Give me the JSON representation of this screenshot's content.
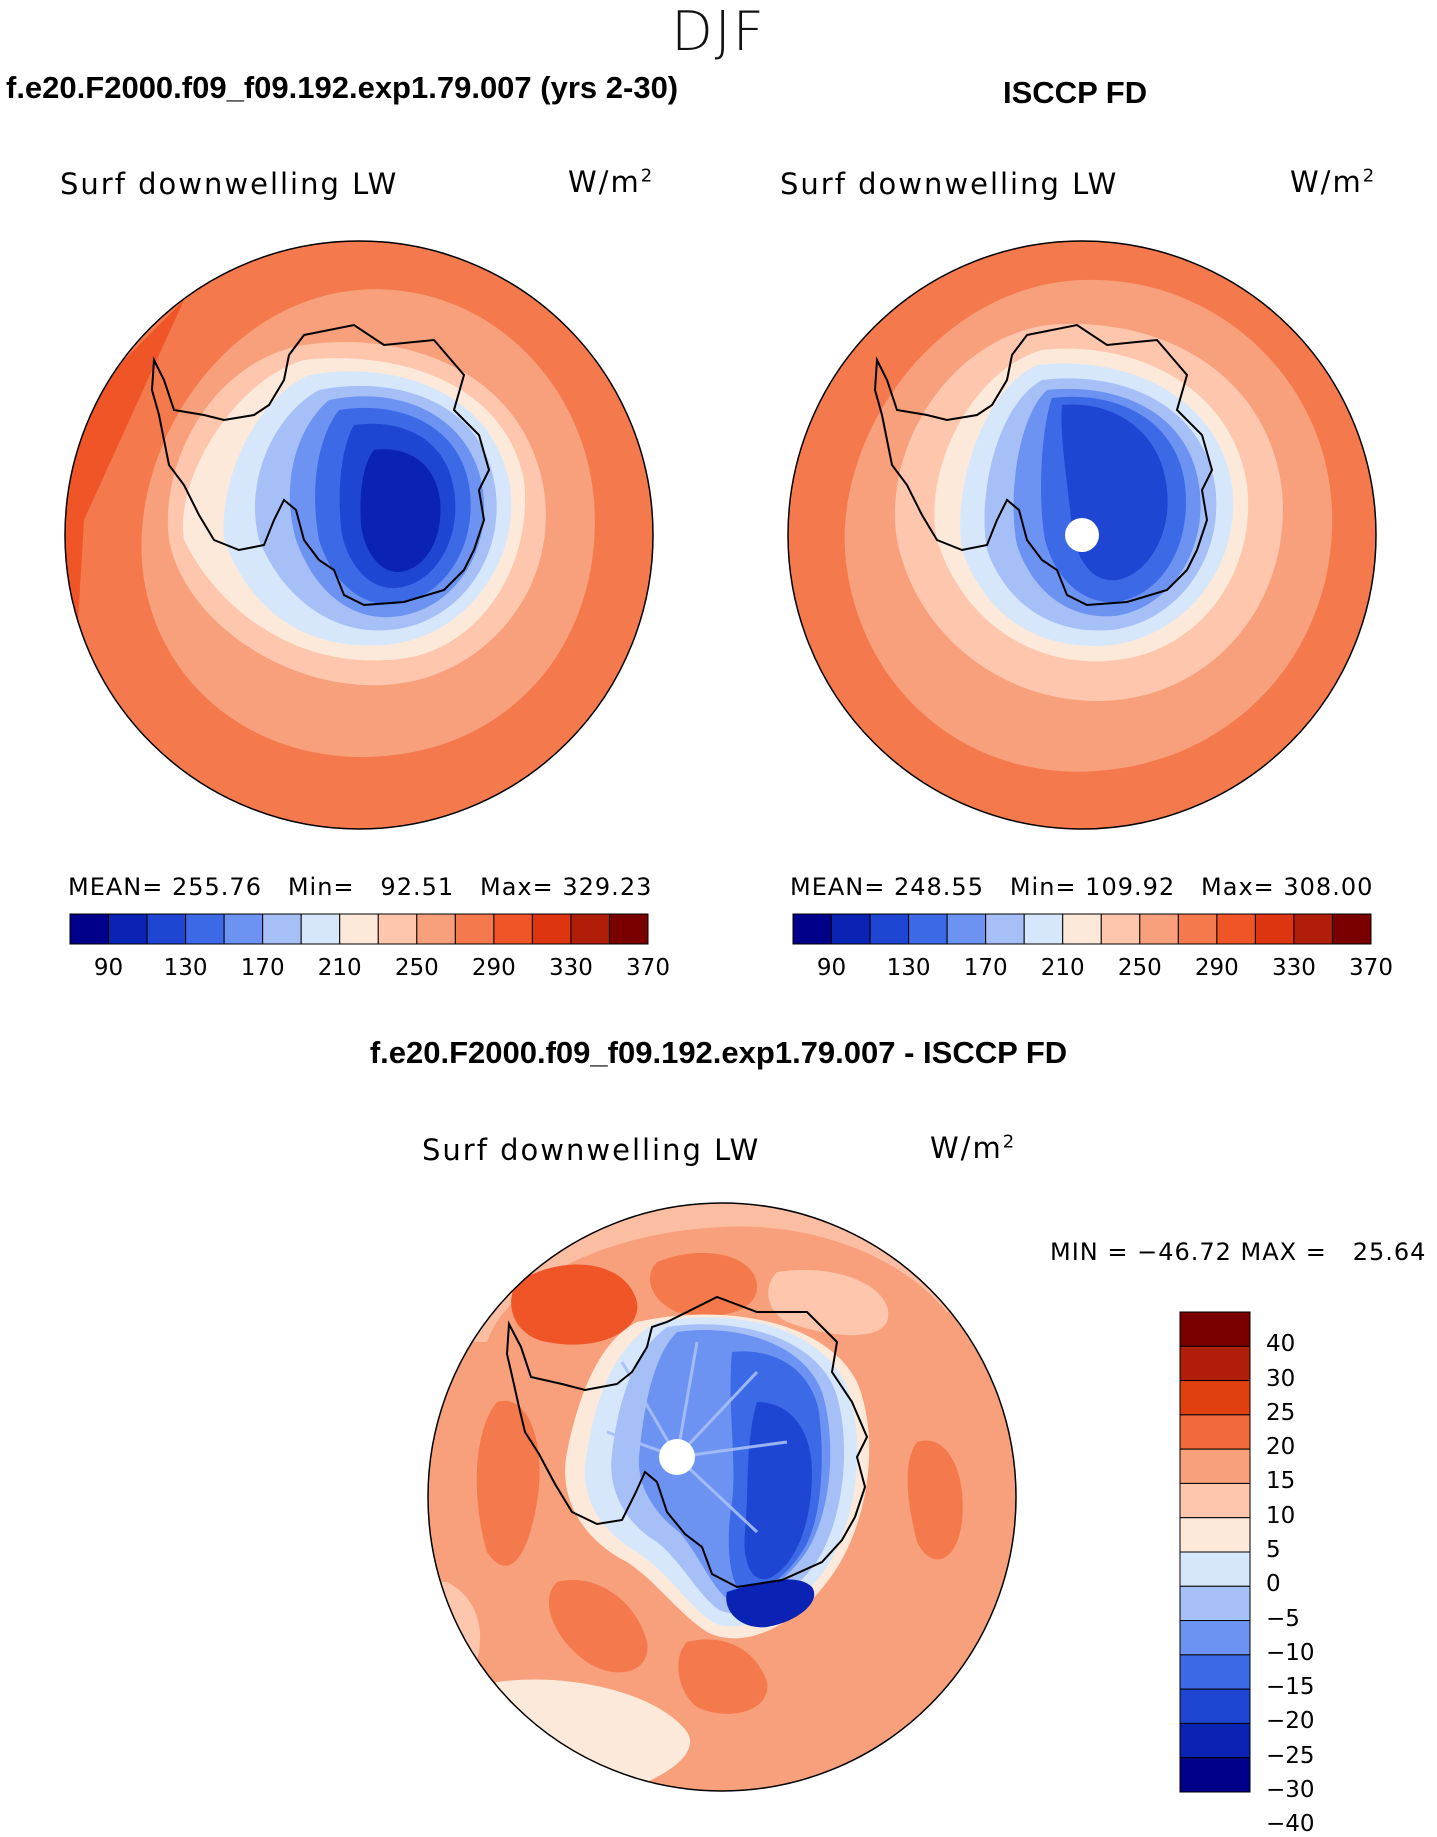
{
  "season": "DJF",
  "panels": [
    {
      "id": "model",
      "title": "f.e20.F2000.f09_f09.192.exp1.79.007 (yrs 2-30)",
      "variable": "Surf  downwelling  LW",
      "units_base": "W/m",
      "units_exp": "2",
      "stats": "MEAN= 255.76   Min=   92.51   Max= 329.23",
      "colorbar_ticks": [
        "90",
        "130",
        "170",
        "210",
        "250",
        "290",
        "330",
        "370"
      ]
    },
    {
      "id": "obs",
      "title": "ISCCP FD",
      "variable": "Surf  downwelling  LW",
      "units_base": "W/m",
      "units_exp": "2",
      "stats": "MEAN= 248.55   Min= 109.92   Max= 308.00",
      "colorbar_ticks": [
        "90",
        "130",
        "170",
        "210",
        "250",
        "290",
        "330",
        "370"
      ]
    }
  ],
  "diff": {
    "title": "f.e20.F2000.f09_f09.192.exp1.79.007 - ISCCP FD",
    "variable": "Surf  downwelling  LW",
    "units_base": "W/m",
    "units_exp": "2",
    "stats": "MIN = −46.72 MAX =   25.64",
    "colorbar_labels": [
      "40",
      "30",
      "25",
      "20",
      "15",
      "10",
      "5",
      "0",
      "−5",
      "−10",
      "−15",
      "−20",
      "−25",
      "−30",
      "−40"
    ]
  },
  "colors": {
    "abs_scale": [
      "#00008b",
      "#0a23b4",
      "#1e46d2",
      "#3c6ae6",
      "#6d93f2",
      "#a6c0f7",
      "#d7e7fb",
      "#fde9da",
      "#fdc6ad",
      "#f7a07b",
      "#f47a4e",
      "#ef5527",
      "#dd3510",
      "#b01d08",
      "#7a0000"
    ],
    "diff_scale": [
      "#7a0000",
      "#b01d08",
      "#e0400f",
      "#f06a3c",
      "#f7a07b",
      "#fdc6ad",
      "#fde9da",
      "#d7e7fb",
      "#a6c0f7",
      "#6d93f2",
      "#3c6ae6",
      "#1e46d2",
      "#0a23b4",
      "#00008b"
    ]
  }
}
